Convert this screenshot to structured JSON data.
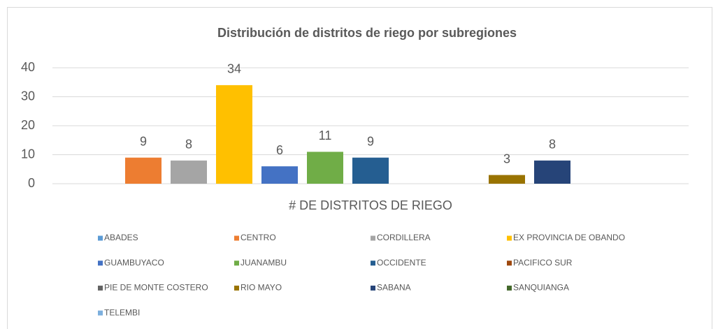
{
  "chart_data": {
    "type": "bar",
    "title": "Distribución  de distritos  de riego por subregiones",
    "categories": [
      "# DE DISTRITOS DE RIEGO"
    ],
    "series": [
      {
        "name": "ABADES",
        "color": "#5b9bd5",
        "values": [
          null
        ]
      },
      {
        "name": "CENTRO",
        "color": "#ed7d31",
        "values": [
          9
        ]
      },
      {
        "name": "CORDILLERA",
        "color": "#a5a5a5",
        "values": [
          8
        ]
      },
      {
        "name": "EX PROVINCIA DE OBANDO",
        "color": "#ffc000",
        "values": [
          34
        ]
      },
      {
        "name": "GUAMBUYACO",
        "color": "#4472c4",
        "values": [
          6
        ]
      },
      {
        "name": "JUANAMBU",
        "color": "#70ad47",
        "values": [
          11
        ]
      },
      {
        "name": "OCCIDENTE",
        "color": "#255e91",
        "values": [
          9
        ]
      },
      {
        "name": "PACIFICO SUR",
        "color": "#9e480e",
        "values": [
          null
        ]
      },
      {
        "name": "PIE DE MONTE COSTERO",
        "color": "#636363",
        "values": [
          null
        ]
      },
      {
        "name": "RIO MAYO",
        "color": "#997300",
        "values": [
          3
        ]
      },
      {
        "name": "SABANA",
        "color": "#264478",
        "values": [
          8
        ]
      },
      {
        "name": "SANQUIANGA",
        "color": "#43682b",
        "values": [
          null
        ]
      },
      {
        "name": "TELEMBI",
        "color": "#7cafdd",
        "values": [
          null
        ]
      }
    ],
    "ylim": [
      0,
      40
    ],
    "yticks": [
      0,
      10,
      20,
      30,
      40
    ],
    "grid": true,
    "legend": "bottom"
  }
}
